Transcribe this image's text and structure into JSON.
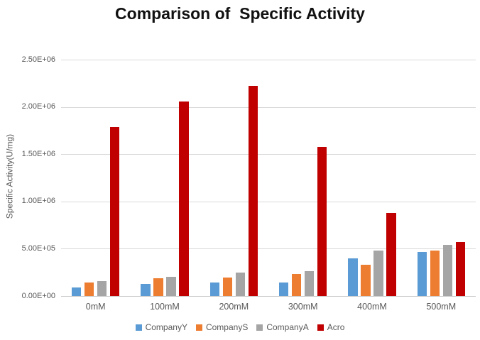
{
  "chart_data": {
    "type": "bar",
    "title": "Comparison of  Specific Activity",
    "ylabel": "Specific Activity(U/mg)",
    "xlabel": "",
    "categories": [
      "0mM",
      "100mM",
      "200mM",
      "300mM",
      "400mM",
      "500mM"
    ],
    "series": [
      {
        "name": "CompanyY",
        "color": "#5b9bd5",
        "values": [
          90000,
          130000,
          140000,
          145000,
          400000,
          465000
        ]
      },
      {
        "name": "CompanyS",
        "color": "#ed7d31",
        "values": [
          140000,
          185000,
          195000,
          230000,
          330000,
          480000
        ]
      },
      {
        "name": "CompanyA",
        "color": "#a5a5a5",
        "values": [
          155000,
          200000,
          250000,
          260000,
          480000,
          540000
        ]
      },
      {
        "name": "Acro",
        "color": "#c00000",
        "values": [
          1790000,
          2060000,
          2220000,
          1580000,
          880000,
          570000
        ]
      }
    ],
    "ylim": [
      0,
      2500000
    ],
    "yticks": [
      {
        "value": 0,
        "label": "0.00E+00"
      },
      {
        "value": 500000,
        "label": "5.00E+05"
      },
      {
        "value": 1000000,
        "label": "1.00E+06"
      },
      {
        "value": 1500000,
        "label": "1.50E+06"
      },
      {
        "value": 2000000,
        "label": "2.00E+06"
      },
      {
        "value": 2500000,
        "label": "2.50E+06"
      }
    ],
    "grid": true,
    "legend_position": "bottom",
    "axis_text_color": "#595959",
    "gridline_color": "#d9d9d9"
  }
}
